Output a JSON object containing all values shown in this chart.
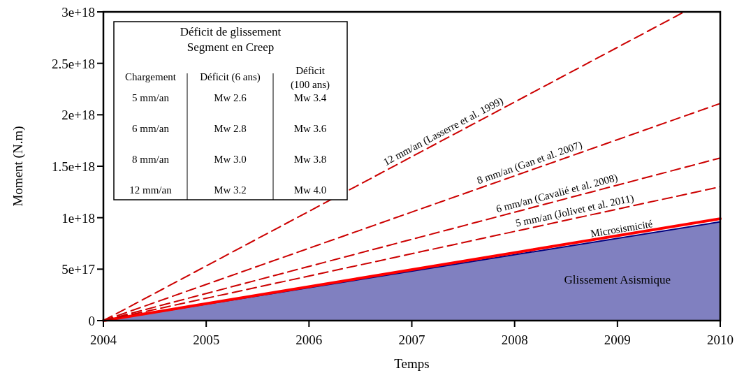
{
  "chart_data": {
    "type": "line",
    "xlabel": "Temps",
    "ylabel": "Moment (N.m)",
    "xlim": [
      2004,
      2010
    ],
    "xticks": [
      2004,
      2005,
      2006,
      2007,
      2008,
      2009,
      2010
    ],
    "ylim": [
      0,
      3e+18
    ],
    "yticks": [
      0,
      {
        "value": 5e+17,
        "label": "5e+17"
      },
      {
        "value": 1e+18,
        "label": "1e+18"
      },
      {
        "value": 1.5e+18,
        "label": "1.5e+18"
      },
      {
        "value": 2e+18,
        "label": "2e+18"
      },
      {
        "value": 2.5e+18,
        "label": "2.5e+18"
      },
      {
        "value": 3e+18,
        "label": "3e+18"
      }
    ],
    "series": [
      {
        "type": "area",
        "name": "Glissement Asismique",
        "color": "#8080c0",
        "x": [
          2004,
          2010
        ],
        "values": [
          0,
          9.6e+17
        ]
      },
      {
        "name": "Microsismicité",
        "color": "#ff0000",
        "x": [
          2004,
          2010
        ],
        "values": [
          0,
          9.9e+17
        ]
      },
      {
        "name": "5 mm/an (Jolivet et al. 2011)",
        "color": "#cc0000",
        "line_style": "dashed",
        "x": [
          2004,
          2010
        ],
        "values": [
          0,
          1.3e+18
        ]
      },
      {
        "name": "6 mm/an (Cavalié et al. 2008)",
        "color": "#cc0000",
        "line_style": "dashed",
        "x": [
          2004,
          2010
        ],
        "values": [
          0,
          1.58e+18
        ]
      },
      {
        "name": "8 mm/an (Gan et al. 2007)",
        "color": "#cc0000",
        "line_style": "dashed",
        "x": [
          2004,
          2010
        ],
        "values": [
          0,
          2.11e+18
        ]
      },
      {
        "name": "12 mm/an (Lasserre et al. 1999)",
        "color": "#cc0000",
        "line_style": "dashed",
        "x": [
          2004,
          2009.65
        ],
        "values": [
          0,
          3e+18
        ]
      }
    ],
    "annotations": [
      "Déficit de glissement",
      "Segment en Creep",
      "Chargement",
      "Déficit (6 ans)",
      "Déficit (100 ans)",
      "5 mm/an",
      "Mw 2.6",
      "Mw 3.4",
      "6 mm/an",
      "Mw 2.8",
      "Mw 3.6",
      "8 mm/an",
      "Mw 3.0",
      "Mw 3.8",
      "12 mm/an",
      "Mw 3.2",
      "Mw 4.0"
    ]
  }
}
